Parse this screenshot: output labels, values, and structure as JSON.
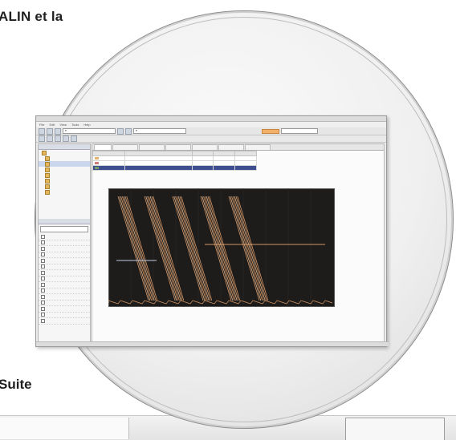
{
  "headline": {
    "top_fragment": "ALIN et la",
    "bottom_fragment": "Suite"
  },
  "app": {
    "menu": [
      "File",
      "Edit",
      "View",
      "Tools",
      "Help"
    ],
    "toolbar_combo_1": "▾",
    "toolbar_combo_2": "▾",
    "left_panel": {
      "title": "",
      "tree": [
        {
          "label": ""
        },
        {
          "label": ""
        },
        {
          "label": "",
          "selected": true
        },
        {
          "label": ""
        },
        {
          "label": ""
        },
        {
          "label": ""
        },
        {
          "label": ""
        },
        {
          "label": ""
        }
      ],
      "list_title": "",
      "list": [
        "",
        "",
        "",
        "",
        "",
        "",
        "",
        "",
        "",
        "",
        "",
        "",
        "",
        "",
        ""
      ]
    },
    "tabs": [
      "",
      "",
      "",
      "",
      "",
      "",
      ""
    ],
    "signals_table": {
      "headers": [
        "",
        "",
        "",
        "",
        ""
      ],
      "rows": [
        {
          "color": "#e6b36a",
          "cells": [
            "",
            "",
            "",
            "",
            ""
          ]
        },
        {
          "color": "#d07a7a",
          "cells": [
            "",
            "",
            "",
            "",
            ""
          ]
        },
        {
          "color": "#7a9a6a",
          "cells": [
            "",
            "",
            "",
            "",
            ""
          ],
          "selected": true
        }
      ]
    },
    "plot": {
      "background": "#1d1c1a",
      "trace_colors": [
        "#e9a46f",
        "#f0c4a0",
        "#b0b8c8"
      ]
    },
    "status": ""
  },
  "colors": {
    "lens_border": "#8c8c8c",
    "window_bg": "#ececec",
    "selection": "#3d4f8e",
    "accent_orange": "#f2b06a"
  }
}
